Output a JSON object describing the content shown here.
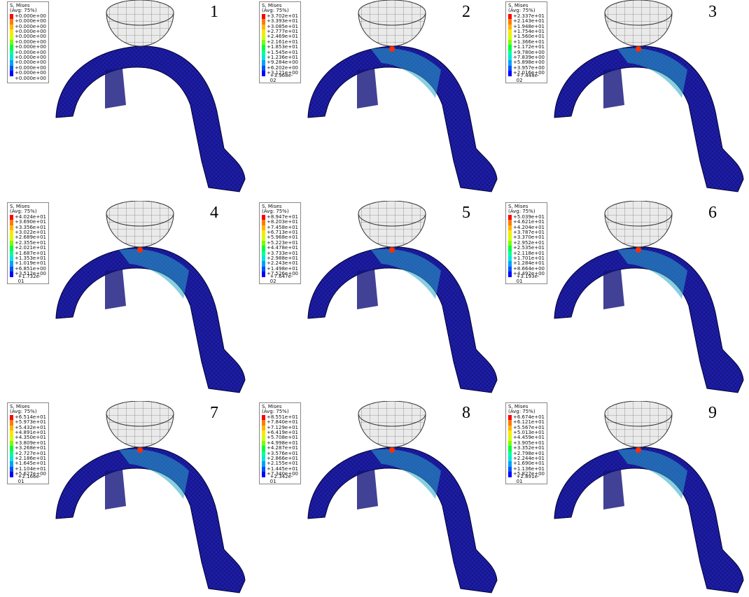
{
  "panels": [
    {
      "number": "1",
      "legend_title": "S, Mises",
      "legend_subtitle": "(Avg: 75%)",
      "legend_values": [
        "+0.000e+00",
        "+0.000e+00",
        "+0.000e+00",
        "+0.000e+00",
        "+0.000e+00",
        "+0.000e+00",
        "+0.000e+00",
        "+0.000e+00",
        "+0.000e+00",
        "+0.000e+00",
        "+0.000e+00",
        "+0.000e+00",
        "+0.000e+00"
      ]
    },
    {
      "number": "2",
      "legend_title": "S, Mises",
      "legend_subtitle": "(Avg: 75%)",
      "legend_values": [
        "+3.702e+01",
        "+3.393e+01",
        "+3.085e+01",
        "+2.777e+01",
        "+2.469e+01",
        "+2.161e+01",
        "+1.853e+01",
        "+1.545e+01",
        "+1.236e+01",
        "+9.284e+00",
        "+6.202e+00",
        "+3.121e+00",
        "+3.968e-02"
      ]
    },
    {
      "number": "3",
      "legend_title": "S, Mises",
      "legend_subtitle": "(Avg: 75%)",
      "legend_values": [
        "+2.337e+01",
        "+2.143e+01",
        "+1.948e+01",
        "+1.754e+01",
        "+1.560e+01",
        "+1.366e+01",
        "+1.172e+01",
        "+9.780e+00",
        "+7.839e+00",
        "+5.898e+00",
        "+3.957e+00",
        "+2.016e+00",
        "+7.448e-02"
      ]
    },
    {
      "number": "4",
      "legend_title": "S, Mises",
      "legend_subtitle": "(Avg: 75%)",
      "legend_values": [
        "+4.024e+01",
        "+3.690e+01",
        "+3.356e+01",
        "+3.022e+01",
        "+2.689e+01",
        "+2.355e+01",
        "+2.021e+01",
        "+1.687e+01",
        "+1.353e+01",
        "+1.019e+01",
        "+6.851e+00",
        "+3.512e+00",
        "+1.732e-01"
      ]
    },
    {
      "number": "5",
      "legend_title": "S, Mises",
      "legend_subtitle": "(Avg: 75%)",
      "legend_values": [
        "+8.947e+01",
        "+8.203e+01",
        "+7.458e+01",
        "+6.713e+01",
        "+5.968e+01",
        "+5.223e+01",
        "+4.478e+01",
        "+3.733e+01",
        "+2.988e+01",
        "+2.243e+01",
        "+1.498e+01",
        "+7.526e+00",
        "+7.647e-02"
      ]
    },
    {
      "number": "6",
      "legend_title": "S, Mises",
      "legend_subtitle": "(Avg: 75%)",
      "legend_values": [
        "+5.039e+01",
        "+4.621e+01",
        "+4.204e+01",
        "+3.787e+01",
        "+3.370e+01",
        "+2.952e+01",
        "+2.535e+01",
        "+2.118e+01",
        "+1.701e+01",
        "+1.284e+01",
        "+8.664e+00",
        "+4.492e+00",
        "+3.193e-01"
      ]
    },
    {
      "number": "7",
      "legend_title": "S, Mises",
      "legend_subtitle": "(Avg: 75%)",
      "legend_values": [
        "+6.514e+01",
        "+5.973e+01",
        "+5.432e+01",
        "+4.891e+01",
        "+4.350e+01",
        "+3.809e+01",
        "+3.268e+01",
        "+2.727e+01",
        "+2.186e+01",
        "+1.645e+01",
        "+1.104e+01",
        "+5.627e+00",
        "+2.166e-01"
      ]
    },
    {
      "number": "8",
      "legend_title": "S, Mises",
      "legend_subtitle": "(Avg: 75%)",
      "legend_values": [
        "+8.551e+01",
        "+7.840e+01",
        "+7.129e+01",
        "+6.419e+01",
        "+5.708e+01",
        "+4.998e+01",
        "+4.287e+01",
        "+3.576e+01",
        "+2.866e+01",
        "+2.155e+01",
        "+1.445e+01",
        "+7.340e+00",
        "+2.342e-01"
      ]
    },
    {
      "number": "9",
      "legend_title": "S, Mises",
      "legend_subtitle": "(Avg: 75%)",
      "legend_values": [
        "+6.674e+01",
        "+6.121e+01",
        "+5.567e+01",
        "+5.013e+01",
        "+4.459e+01",
        "+3.905e+01",
        "+3.352e+01",
        "+2.798e+01",
        "+2.244e+01",
        "+1.690e+01",
        "+1.136e+01",
        "+5.827e+00",
        "+2.891e-01"
      ]
    }
  ]
}
